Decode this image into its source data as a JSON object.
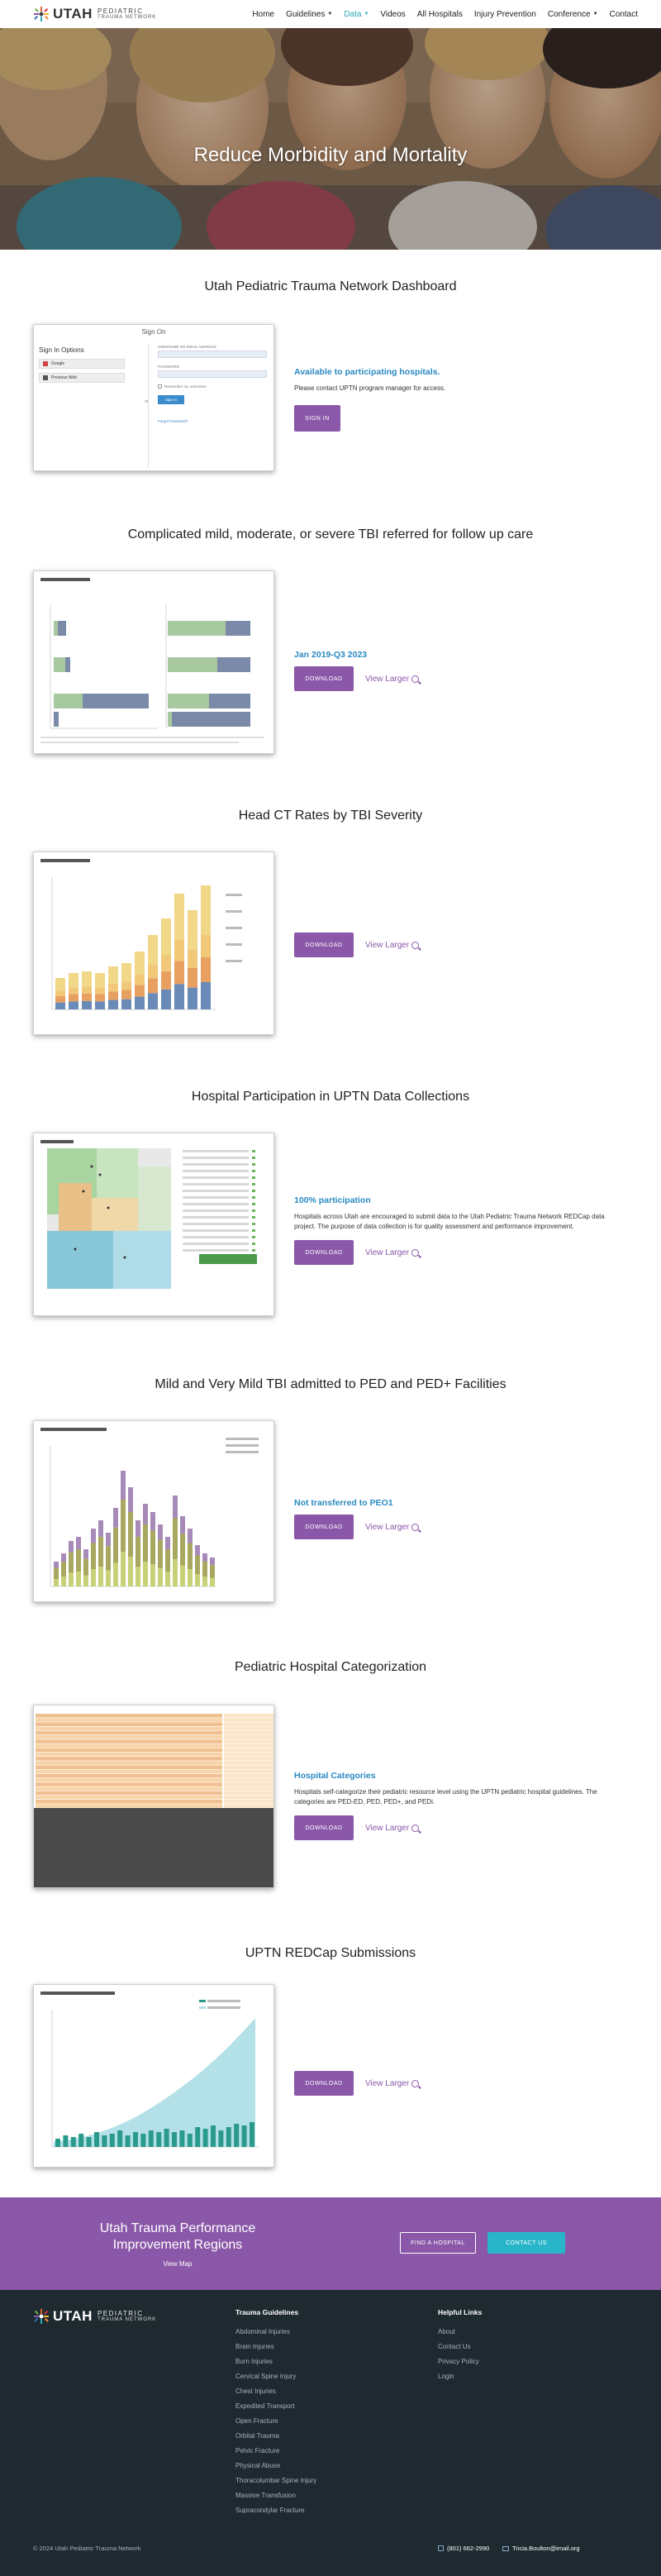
{
  "header": {
    "logo_word": "UTAH",
    "logo_sub1": "PEDIATRIC",
    "logo_sub2": "TRAUMA NETWORK",
    "nav": [
      {
        "label": "Home",
        "dropdown": false,
        "active": false
      },
      {
        "label": "Guidelines",
        "dropdown": true,
        "active": false
      },
      {
        "label": "Data",
        "dropdown": true,
        "active": true
      },
      {
        "label": "Videos",
        "dropdown": false,
        "active": false
      },
      {
        "label": "All Hospitals",
        "dropdown": false,
        "active": false
      },
      {
        "label": "Injury Prevention",
        "dropdown": false,
        "active": false
      },
      {
        "label": "Conference",
        "dropdown": true,
        "active": false
      },
      {
        "label": "Contact",
        "dropdown": false,
        "active": false
      }
    ],
    "active_color": "#2aa7b8"
  },
  "hero": {
    "title": "Reduce Morbidity and Mortality"
  },
  "dashboard": {
    "title": "Utah Pediatric Trauma Network Dashboard",
    "signon": {
      "title": "Sign On",
      "options_title": "Sign In Options",
      "option1": "Google",
      "option2": "Previous Web",
      "or": "or",
      "username_label": "USERNAME OR EMAIL ADDRESS",
      "password_label": "PASSWORD",
      "remember": "Remember my username",
      "submit": "Sign In",
      "forgot": "Forgot Password?"
    },
    "heading": "Available to participating hospitals.",
    "text": "Please contact UPTN program manager for access.",
    "button": "SIGN IN"
  },
  "sections": {
    "tbi_followup": {
      "title": "Complicated mild, moderate, or severe TBI referred for follow up care",
      "heading": "Jan 2019-Q3 2023",
      "text": "",
      "download": "DOWNLOAD",
      "view": "View Larger"
    },
    "head_ct": {
      "title": "Head CT Rates by TBI Severity",
      "heading": "",
      "text": "",
      "download": "DOWNLOAD",
      "view": "View Larger"
    },
    "participation": {
      "title": "Hospital Participation in UPTN Data Collections",
      "heading": "100% participation",
      "text": "Hospitals across Utah are encouraged to submit data to the Utah Pediatric Trauma Network REDCap data project. The purpose of data collection is for quality assessment and performance improvement.",
      "download": "DOWNLOAD",
      "view": "View Larger"
    },
    "mild_tbi": {
      "title": "Mild and Very Mild TBI admitted to PED and PED+ Facilities",
      "heading": "Not transferred to PEO1",
      "text": "",
      "download": "DOWNLOAD",
      "view": "View Larger"
    },
    "categorization": {
      "title": "Pediatric Hospital Categorization",
      "heading": "Hospital Categories",
      "text": "Hospitals self-categorize their pediatric resource level using the UPTN pediatric hospital guidelines. The categories are PED-ED, PED, PED+, and PEDi.",
      "download": "DOWNLOAD",
      "view": "View Larger"
    },
    "redcap": {
      "title": "UPTN REDCap Submissions",
      "heading": "",
      "text": "",
      "download": "DOWNLOAD",
      "view": "View Larger"
    }
  },
  "cta": {
    "title": "Utah Trauma Performance Improvement Regions",
    "link": "View Map",
    "button1": "FIND A HOSPITAL",
    "button2": "CONTACT US",
    "band_color": "#8b58a9"
  },
  "footer": {
    "guidelines_title": "Trauma Guidelines",
    "guidelines": [
      "Abdominal Injuries",
      "Brain Injuries",
      "Burn Injuries",
      "Cervical Spine Injury",
      "Chest Injuries",
      "Expedited Transport",
      "Open Fracture",
      "Orbital Trauma",
      "Pelvic Fracture",
      "Physical Abuse",
      "Thoracolumbar Spine Injury",
      "Massive Transfusion",
      "Supracondylar Fracture"
    ],
    "links_title": "Helpful Links",
    "links": [
      "About",
      "Contact Us",
      "Privacy Policy",
      "Login"
    ],
    "copyright": "© 2024 Utah Pediatric Trauma Network",
    "phone": "(801) 662-2990",
    "email": "Tricia.Boulton@imail.org"
  }
}
